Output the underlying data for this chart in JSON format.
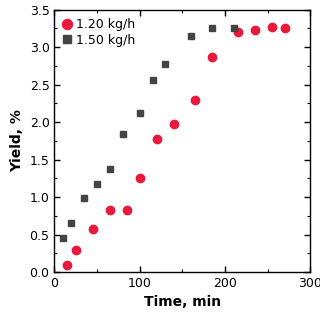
{
  "series1_label": "1.20 kg/h",
  "series1_color": "#e8193c",
  "series1_marker": "o",
  "series1_x": [
    15,
    25,
    45,
    65,
    85,
    100,
    120,
    140,
    165,
    185,
    215,
    235,
    255,
    270
  ],
  "series1_y": [
    0.1,
    0.3,
    0.57,
    0.83,
    0.83,
    1.26,
    1.78,
    1.97,
    2.29,
    2.87,
    3.2,
    3.23,
    3.27,
    3.25
  ],
  "series2_label": "1.50 kg/h",
  "series2_color": "#444444",
  "series2_marker": "s",
  "series2_x": [
    10,
    20,
    35,
    50,
    65,
    80,
    100,
    115,
    130,
    160,
    185,
    210
  ],
  "series2_y": [
    0.46,
    0.65,
    0.99,
    1.17,
    1.38,
    1.84,
    2.12,
    2.56,
    2.78,
    3.15,
    3.25,
    3.25
  ],
  "xlabel": "Time, min",
  "ylabel": "Yield, %",
  "xlim": [
    0,
    300
  ],
  "ylim": [
    0.0,
    3.5
  ],
  "xticks": [
    0,
    100,
    200,
    300
  ],
  "yticks": [
    0.0,
    0.5,
    1.0,
    1.5,
    2.0,
    2.5,
    3.0,
    3.5
  ],
  "marker_size_circle": 6,
  "marker_size_square": 5,
  "legend_fontsize": 9,
  "axis_label_fontsize": 10,
  "tick_fontsize": 9,
  "background_color": "#ffffff",
  "legend_loc": "upper left",
  "fig_width": 3.2,
  "fig_height": 3.2,
  "dpi": 100
}
